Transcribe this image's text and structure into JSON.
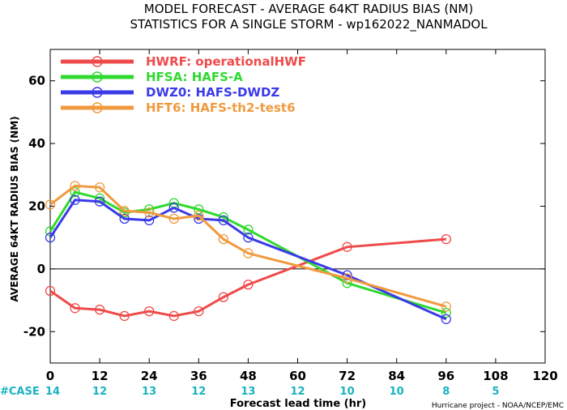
{
  "chart_data": {
    "type": "line",
    "title": "MODEL FORECAST - AVERAGE 64KT RADIUS BIAS (NM)",
    "subtitle": "STATISTICS FOR A SINGLE STORM - wp162022_NANMADOL",
    "xlabel": "Forecast lead time (hr)",
    "ylabel": "AVERAGE 64KT RADIUS BIAS (NM)",
    "xlim": [
      0,
      120
    ],
    "ylim": [
      -30,
      70
    ],
    "xticks": [
      0,
      12,
      24,
      36,
      48,
      60,
      72,
      84,
      96,
      108,
      120
    ],
    "yticks": [
      -20,
      0,
      20,
      40,
      60
    ],
    "zero_line": true,
    "legend_placement": "top-left",
    "series": [
      {
        "name": "HWRF: operationalHWF",
        "color": "#ef4a4a",
        "x": [
          0,
          6,
          12,
          18,
          24,
          30,
          36,
          42,
          48,
          72,
          96
        ],
        "y": [
          -7,
          -12.5,
          -13,
          -15,
          -13.5,
          -15,
          -13.5,
          -9,
          -5,
          7,
          9.5
        ]
      },
      {
        "name": "HFSA: HAFS-A",
        "color": "#2fd92f",
        "x": [
          0,
          6,
          12,
          18,
          24,
          30,
          36,
          42,
          48,
          72,
          96
        ],
        "y": [
          12,
          24.5,
          22.5,
          18,
          19,
          21,
          19,
          16.5,
          12.5,
          -4.5,
          -14
        ]
      },
      {
        "name": "DWZ0: HAFS-DWDZ",
        "color": "#3a3ae8",
        "x": [
          0,
          6,
          12,
          18,
          24,
          30,
          36,
          42,
          48,
          72,
          96
        ],
        "y": [
          10,
          22,
          21.5,
          16,
          15.5,
          19.5,
          16,
          15.5,
          10,
          -2,
          -16
        ]
      },
      {
        "name": "HFT6: HAFS-th2-test6",
        "color": "#f09a3e",
        "x": [
          0,
          6,
          12,
          18,
          24,
          30,
          36,
          42,
          48,
          72,
          96
        ],
        "y": [
          20.5,
          26.5,
          26,
          18.5,
          18,
          16,
          17,
          9.5,
          5,
          -3,
          -12
        ]
      }
    ],
    "case_label": "#CASE",
    "case_counts": [
      {
        "x": 0,
        "n": "14"
      },
      {
        "x": 12,
        "n": "12"
      },
      {
        "x": 24,
        "n": "13"
      },
      {
        "x": 36,
        "n": "12"
      },
      {
        "x": 48,
        "n": "13"
      },
      {
        "x": 60,
        "n": "12"
      },
      {
        "x": 72,
        "n": "10"
      },
      {
        "x": 84,
        "n": "10"
      },
      {
        "x": 96,
        "n": "8"
      },
      {
        "x": 108,
        "n": "5"
      }
    ],
    "credit": "Hurricane project - NOAA/NCEP/EMC"
  }
}
